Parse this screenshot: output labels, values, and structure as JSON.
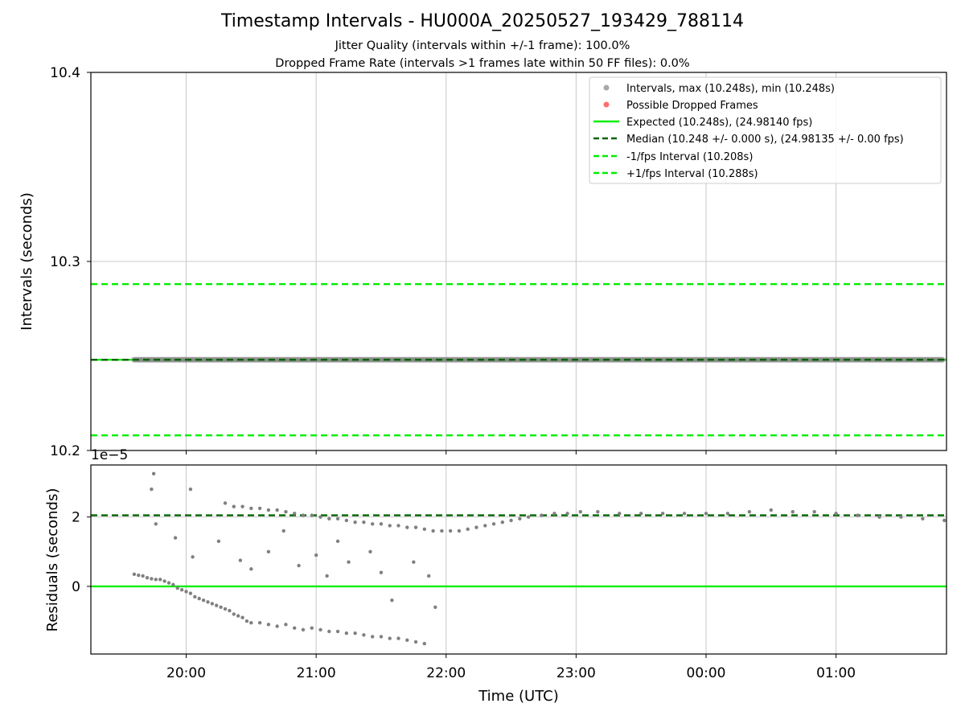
{
  "chart_data": [
    {
      "type": "scatter",
      "title": "Timestamp Intervals - HU000A_20250527_193429_788114",
      "subtitle_lines": [
        "Jitter Quality (intervals within +/-1 frame): 100.0%",
        "Dropped Frame Rate (intervals >1 frames late within 50 FF files): 0.0%"
      ],
      "ylabel": "Intervals (seconds)",
      "ylim": [
        10.2,
        10.4
      ],
      "yticks": [
        "10.2",
        "10.3",
        "10.4"
      ],
      "grid": true,
      "legend_position": "top-right",
      "series": [
        {
          "name": "Intervals, max (10.248s), min (10.248s)",
          "kind": "scatter",
          "color": "#808080",
          "constant_y": 10.248,
          "x_range": [
            "19:36",
            "01:50"
          ]
        },
        {
          "name": "Possible Dropped Frames",
          "kind": "scatter",
          "color": "#ff4d4d",
          "points": []
        },
        {
          "name": "Expected (10.248s), (24.98140 fps)",
          "kind": "hline",
          "style": "solid",
          "color": "#00ee00",
          "y": 10.248
        },
        {
          "name": "Median (10.248 +/- 0.000 s), (24.98135 +/- 0.00 fps)",
          "kind": "hline",
          "style": "dashed",
          "color": "#006400",
          "y": 10.248
        },
        {
          "name": "-1/fps Interval (10.208s)",
          "kind": "hline",
          "style": "dashed",
          "color": "#00ee00",
          "y": 10.208
        },
        {
          "name": "+1/fps Interval (10.288s)",
          "kind": "hline",
          "style": "dashed",
          "color": "#00ee00",
          "y": 10.288
        }
      ]
    },
    {
      "type": "scatter",
      "xlabel": "Time (UTC)",
      "ylabel": "Residuals (seconds)",
      "y_offset_label": "1e−5",
      "y_unit_scale": 1e-05,
      "ylim": [
        -1.95,
        3.5
      ],
      "yticks": [
        0,
        2
      ],
      "x_categories": [
        "20:00",
        "21:00",
        "22:00",
        "23:00",
        "00:00",
        "01:00"
      ],
      "grid": true,
      "reference_lines": [
        {
          "y": 0,
          "style": "solid",
          "color": "#00ee00"
        },
        {
          "y": 2.05,
          "style": "dashed",
          "color": "#006400"
        }
      ],
      "series": [
        {
          "name": "",
          "color": "#808080",
          "points": [
            [
              "19:36",
              0.35
            ],
            [
              "19:38",
              0.32
            ],
            [
              "19:40",
              0.3
            ],
            [
              "19:42",
              0.25
            ],
            [
              "19:44",
              0.22
            ],
            [
              "19:46",
              0.2
            ],
            [
              "19:48",
              0.2
            ],
            [
              "19:50",
              0.15
            ],
            [
              "19:52",
              0.1
            ],
            [
              "19:54",
              0.05
            ],
            [
              "19:56",
              -0.05
            ],
            [
              "19:58",
              -0.1
            ],
            [
              "20:00",
              -0.15
            ],
            [
              "20:02",
              -0.2
            ],
            [
              "20:04",
              -0.3
            ],
            [
              "20:06",
              -0.35
            ],
            [
              "20:08",
              -0.4
            ],
            [
              "20:10",
              -0.45
            ],
            [
              "20:12",
              -0.5
            ],
            [
              "20:14",
              -0.55
            ],
            [
              "20:16",
              -0.6
            ],
            [
              "20:18",
              -0.65
            ],
            [
              "20:20",
              -0.7
            ],
            [
              "20:22",
              -0.8
            ],
            [
              "20:24",
              -0.85
            ],
            [
              "20:26",
              -0.9
            ],
            [
              "20:28",
              -1.0
            ],
            [
              "20:30",
              -1.05
            ],
            [
              "20:34",
              -1.05
            ],
            [
              "20:38",
              -1.1
            ],
            [
              "20:42",
              -1.15
            ],
            [
              "20:46",
              -1.1
            ],
            [
              "20:50",
              -1.2
            ],
            [
              "20:54",
              -1.25
            ],
            [
              "20:58",
              -1.2
            ],
            [
              "21:02",
              -1.25
            ],
            [
              "21:06",
              -1.3
            ],
            [
              "21:10",
              -1.3
            ],
            [
              "21:14",
              -1.35
            ],
            [
              "21:18",
              -1.35
            ],
            [
              "21:22",
              -1.4
            ],
            [
              "21:26",
              -1.45
            ],
            [
              "21:30",
              -1.45
            ],
            [
              "21:34",
              -1.5
            ],
            [
              "21:38",
              -1.5
            ],
            [
              "21:42",
              -1.55
            ],
            [
              "21:46",
              -1.6
            ],
            [
              "21:50",
              -1.65
            ],
            [
              "20:18",
              2.4
            ],
            [
              "20:22",
              2.3
            ],
            [
              "20:26",
              2.3
            ],
            [
              "20:30",
              2.25
            ],
            [
              "20:34",
              2.25
            ],
            [
              "20:38",
              2.2
            ],
            [
              "20:42",
              2.2
            ],
            [
              "20:46",
              2.15
            ],
            [
              "20:50",
              2.1
            ],
            [
              "20:54",
              2.05
            ],
            [
              "20:58",
              2.05
            ],
            [
              "21:02",
              2.0
            ],
            [
              "21:06",
              1.95
            ],
            [
              "21:10",
              1.95
            ],
            [
              "21:14",
              1.9
            ],
            [
              "21:18",
              1.85
            ],
            [
              "21:22",
              1.85
            ],
            [
              "21:26",
              1.8
            ],
            [
              "21:30",
              1.8
            ],
            [
              "21:34",
              1.75
            ],
            [
              "21:38",
              1.75
            ],
            [
              "21:42",
              1.7
            ],
            [
              "21:46",
              1.7
            ],
            [
              "21:50",
              1.65
            ],
            [
              "21:54",
              1.6
            ],
            [
              "21:58",
              1.6
            ],
            [
              "22:02",
              1.6
            ],
            [
              "22:06",
              1.6
            ],
            [
              "22:10",
              1.65
            ],
            [
              "22:14",
              1.7
            ],
            [
              "22:18",
              1.75
            ],
            [
              "22:22",
              1.8
            ],
            [
              "22:26",
              1.85
            ],
            [
              "22:30",
              1.9
            ],
            [
              "22:34",
              1.95
            ],
            [
              "22:38",
              2.0
            ],
            [
              "22:44",
              2.05
            ],
            [
              "22:50",
              2.1
            ],
            [
              "22:56",
              2.1
            ],
            [
              "23:02",
              2.15
            ],
            [
              "23:10",
              2.15
            ],
            [
              "23:20",
              2.1
            ],
            [
              "23:30",
              2.1
            ],
            [
              "23:40",
              2.1
            ],
            [
              "23:50",
              2.1
            ],
            [
              "00:00",
              2.1
            ],
            [
              "00:10",
              2.1
            ],
            [
              "00:20",
              2.15
            ],
            [
              "00:30",
              2.2
            ],
            [
              "00:40",
              2.15
            ],
            [
              "00:50",
              2.15
            ],
            [
              "01:00",
              2.1
            ],
            [
              "01:10",
              2.05
            ],
            [
              "01:20",
              2.0
            ],
            [
              "01:30",
              2.0
            ],
            [
              "01:40",
              1.95
            ],
            [
              "01:50",
              1.9
            ],
            [
              "19:45",
              3.25
            ],
            [
              "19:44",
              2.8
            ],
            [
              "19:46",
              1.8
            ],
            [
              "19:55",
              1.4
            ],
            [
              "20:02",
              2.8
            ],
            [
              "20:03",
              0.85
            ],
            [
              "20:15",
              1.3
            ],
            [
              "20:25",
              0.75
            ],
            [
              "20:30",
              0.5
            ],
            [
              "20:38",
              1.0
            ],
            [
              "20:45",
              1.6
            ],
            [
              "20:52",
              0.6
            ],
            [
              "21:00",
              0.9
            ],
            [
              "21:05",
              0.3
            ],
            [
              "21:10",
              1.3
            ],
            [
              "21:15",
              0.7
            ],
            [
              "21:25",
              1.0
            ],
            [
              "21:30",
              0.4
            ],
            [
              "21:35",
              -0.4
            ],
            [
              "21:45",
              0.7
            ],
            [
              "21:52",
              0.3
            ],
            [
              "21:55",
              -0.6
            ]
          ]
        }
      ]
    }
  ]
}
